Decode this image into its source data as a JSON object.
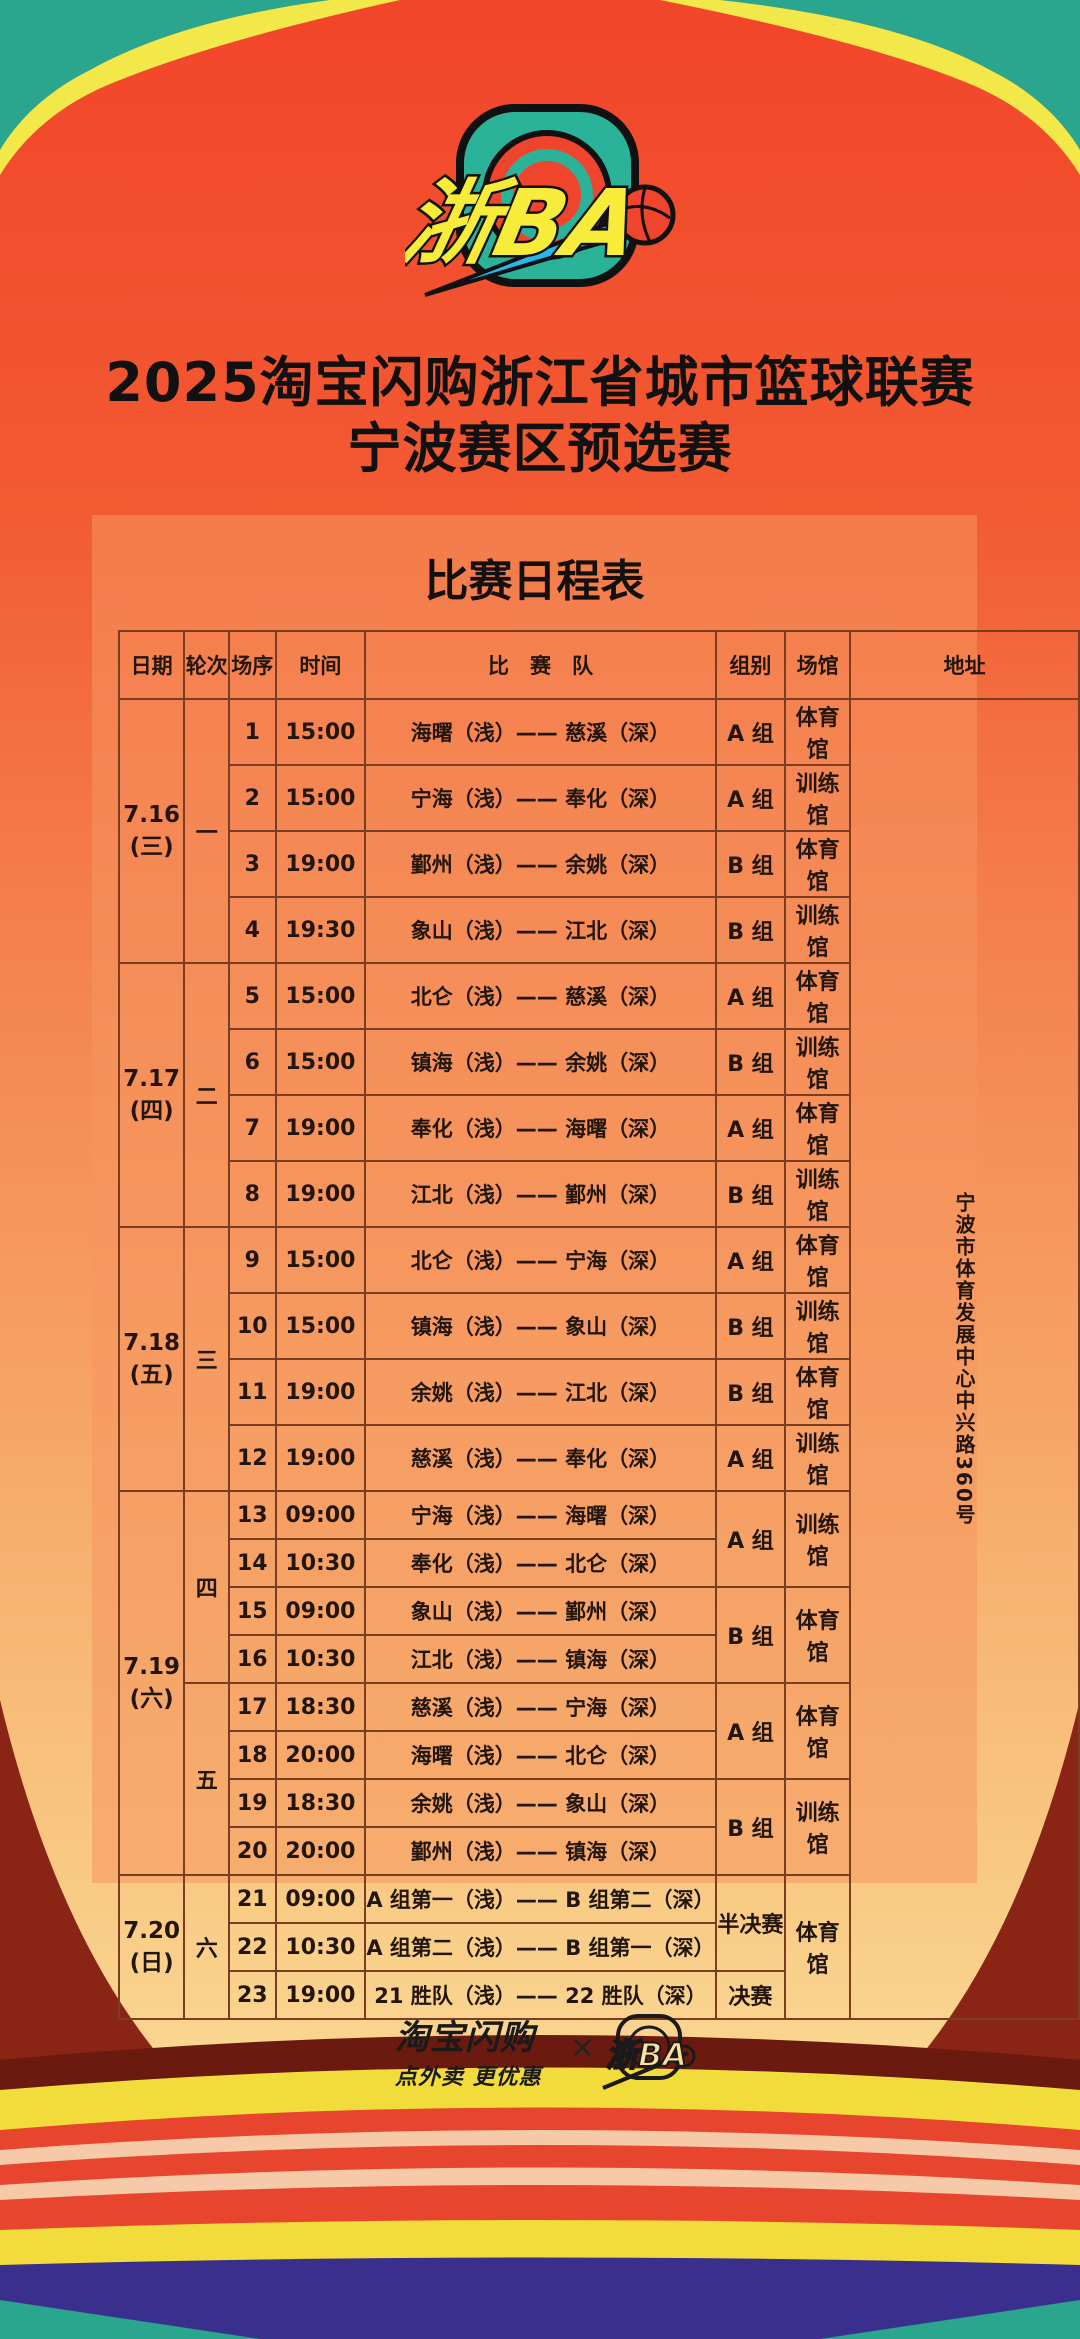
{
  "logo": {
    "text": "浙BA",
    "colors": {
      "teal": "#2bb39a",
      "yellow": "#f7ec3a",
      "red": "#f0442c",
      "blue": "#2ab6ea",
      "outline": "#111111"
    }
  },
  "header": {
    "line1": "2025淘宝闪购浙江省城市篮球联赛",
    "line2": "宁波赛区预选赛"
  },
  "schedule": {
    "title": "比赛日程表",
    "columns": [
      "日期",
      "轮次",
      "场序",
      "时间",
      "比　赛　队",
      "组别",
      "场馆",
      "地址"
    ],
    "address": "宁波市体育发展中心中兴路360号",
    "dates": [
      {
        "date": "7.16",
        "weekday": "(三)",
        "span": 4
      },
      {
        "date": "7.17",
        "weekday": "(四)",
        "span": 4
      },
      {
        "date": "7.18",
        "weekday": "(五)",
        "span": 4
      },
      {
        "date": "7.19",
        "weekday": "(六)",
        "span": 8
      },
      {
        "date": "7.20",
        "weekday": "(日)",
        "span": 3
      }
    ],
    "rounds": [
      {
        "label": "一",
        "span": 4
      },
      {
        "label": "二",
        "span": 4
      },
      {
        "label": "三",
        "span": 4
      },
      {
        "label": "四",
        "span": 4
      },
      {
        "label": "五",
        "span": 4
      },
      {
        "label": "六",
        "span": 3
      }
    ],
    "groups": [
      {
        "label": "A 组",
        "span": 1
      },
      {
        "label": "A 组",
        "span": 1
      },
      {
        "label": "B 组",
        "span": 1
      },
      {
        "label": "B 组",
        "span": 1
      },
      {
        "label": "A 组",
        "span": 1
      },
      {
        "label": "B 组",
        "span": 1
      },
      {
        "label": "A 组",
        "span": 1
      },
      {
        "label": "B 组",
        "span": 1
      },
      {
        "label": "A 组",
        "span": 1
      },
      {
        "label": "B 组",
        "span": 1
      },
      {
        "label": "B 组",
        "span": 1
      },
      {
        "label": "A 组",
        "span": 1
      },
      {
        "label": "A 组",
        "span": 2
      },
      {
        "label": "B 组",
        "span": 2
      },
      {
        "label": "A 组",
        "span": 2
      },
      {
        "label": "B 组",
        "span": 2
      },
      {
        "label": "半决赛",
        "span": 2
      },
      {
        "label": "决赛",
        "span": 1
      }
    ],
    "venues": [
      {
        "label": "体育馆",
        "span": 1
      },
      {
        "label": "训练馆",
        "span": 1
      },
      {
        "label": "体育馆",
        "span": 1
      },
      {
        "label": "训练馆",
        "span": 1
      },
      {
        "label": "体育馆",
        "span": 1
      },
      {
        "label": "训练馆",
        "span": 1
      },
      {
        "label": "体育馆",
        "span": 1
      },
      {
        "label": "训练馆",
        "span": 1
      },
      {
        "label": "体育馆",
        "span": 1
      },
      {
        "label": "训练馆",
        "span": 1
      },
      {
        "label": "体育馆",
        "span": 1
      },
      {
        "label": "训练馆",
        "span": 1
      },
      {
        "label": "训练馆",
        "span": 2
      },
      {
        "label": "体育馆",
        "span": 2
      },
      {
        "label": "体育馆",
        "span": 2
      },
      {
        "label": "训练馆",
        "span": 2
      },
      {
        "label": "体育馆",
        "span": 3
      }
    ],
    "matches": [
      {
        "no": "1",
        "time": "15:00",
        "teams": "海曙（浅）—— 慈溪（深）"
      },
      {
        "no": "2",
        "time": "15:00",
        "teams": "宁海（浅）—— 奉化（深）"
      },
      {
        "no": "3",
        "time": "19:00",
        "teams": "鄞州（浅）—— 余姚（深）"
      },
      {
        "no": "4",
        "time": "19:30",
        "teams": "象山（浅）—— 江北（深）"
      },
      {
        "no": "5",
        "time": "15:00",
        "teams": "北仑（浅）—— 慈溪（深）"
      },
      {
        "no": "6",
        "time": "15:00",
        "teams": "镇海（浅）—— 余姚（深）"
      },
      {
        "no": "7",
        "time": "19:00",
        "teams": "奉化（浅）—— 海曙（深）"
      },
      {
        "no": "8",
        "time": "19:00",
        "teams": "江北（浅）—— 鄞州（深）"
      },
      {
        "no": "9",
        "time": "15:00",
        "teams": "北仑（浅）—— 宁海（深）"
      },
      {
        "no": "10",
        "time": "15:00",
        "teams": "镇海（浅）—— 象山（深）"
      },
      {
        "no": "11",
        "time": "19:00",
        "teams": "余姚（浅）—— 江北（深）"
      },
      {
        "no": "12",
        "time": "19:00",
        "teams": "慈溪（浅）—— 奉化（深）"
      },
      {
        "no": "13",
        "time": "09:00",
        "teams": "宁海（浅）—— 海曙（深）"
      },
      {
        "no": "14",
        "time": "10:30",
        "teams": "奉化（浅）—— 北仑（深）"
      },
      {
        "no": "15",
        "time": "09:00",
        "teams": "象山（浅）—— 鄞州（深）"
      },
      {
        "no": "16",
        "time": "10:30",
        "teams": "江北（浅）—— 镇海（深）"
      },
      {
        "no": "17",
        "time": "18:30",
        "teams": "慈溪（浅）—— 宁海（深）"
      },
      {
        "no": "18",
        "time": "20:00",
        "teams": "海曙（浅）—— 北仑（深）"
      },
      {
        "no": "19",
        "time": "18:30",
        "teams": "余姚（浅）—— 象山（深）"
      },
      {
        "no": "20",
        "time": "20:00",
        "teams": "鄞州（浅）—— 镇海（深）"
      },
      {
        "no": "21",
        "time": "09:00",
        "teams": "A 组第一（浅）—— B 组第二（深）"
      },
      {
        "no": "22",
        "time": "10:30",
        "teams": "A 组第二（浅）—— B 组第一（深）"
      },
      {
        "no": "23",
        "time": "19:00",
        "teams": "21 胜队（浅）—— 22 胜队（深）"
      }
    ]
  },
  "footer": {
    "sponsor_name": "淘宝闪购",
    "sponsor_slogan": "点外卖 更优惠",
    "times_sign": "×",
    "partner_logo_text": "浙BA"
  }
}
